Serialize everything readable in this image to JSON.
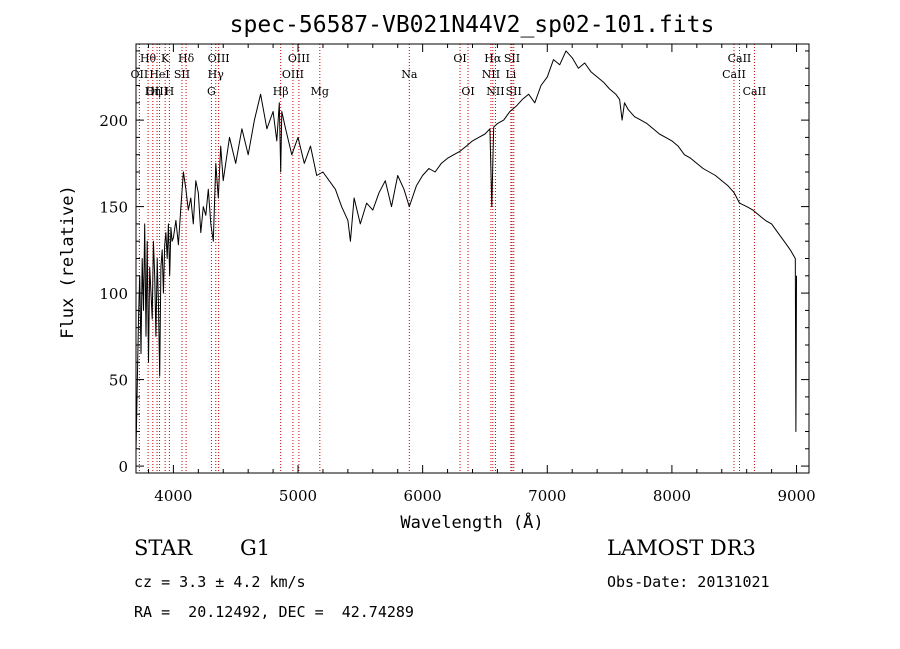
{
  "chart_data": {
    "type": "line",
    "title": "spec-56587-VB021N44V2_sp02-101.fits",
    "xlabel": "Wavelength (Å)",
    "ylabel": "Flux (relative)",
    "xlim": [
      3700,
      9100
    ],
    "ylim": [
      -4,
      244
    ],
    "x_ticks": [
      4000,
      5000,
      6000,
      7000,
      8000,
      9000
    ],
    "y_ticks": [
      0,
      50,
      100,
      150,
      200
    ],
    "grid": false,
    "series": [
      {
        "name": "flux",
        "x": [
          3700,
          3710,
          3720,
          3730,
          3740,
          3750,
          3760,
          3770,
          3780,
          3790,
          3800,
          3810,
          3820,
          3830,
          3840,
          3850,
          3860,
          3870,
          3880,
          3890,
          3900,
          3910,
          3920,
          3930,
          3940,
          3950,
          3960,
          3970,
          3980,
          3990,
          4000,
          4020,
          4040,
          4060,
          4080,
          4100,
          4120,
          4140,
          4160,
          4180,
          4200,
          4220,
          4240,
          4260,
          4280,
          4300,
          4320,
          4340,
          4360,
          4380,
          4400,
          4450,
          4500,
          4550,
          4600,
          4650,
          4700,
          4750,
          4800,
          4830,
          4850,
          4861,
          4870,
          4900,
          4950,
          5000,
          5050,
          5100,
          5150,
          5200,
          5250,
          5300,
          5350,
          5400,
          5420,
          5450,
          5500,
          5550,
          5600,
          5650,
          5700,
          5750,
          5800,
          5850,
          5893,
          5950,
          6000,
          6050,
          6100,
          6150,
          6200,
          6250,
          6300,
          6350,
          6400,
          6450,
          6500,
          6540,
          6555,
          6563,
          6570,
          6600,
          6650,
          6700,
          6750,
          6800,
          6850,
          6900,
          6950,
          7000,
          7050,
          7100,
          7150,
          7200,
          7250,
          7300,
          7350,
          7400,
          7450,
          7500,
          7550,
          7580,
          7600,
          7620,
          7650,
          7700,
          7750,
          7800,
          7850,
          7900,
          7950,
          8000,
          8050,
          8100,
          8150,
          8200,
          8250,
          8300,
          8350,
          8400,
          8450,
          8500,
          8542,
          8600,
          8650,
          8700,
          8750,
          8800,
          8850,
          8900,
          8950,
          8990,
          8995,
          9000
        ],
        "values": [
          8,
          45,
          85,
          110,
          65,
          120,
          90,
          140,
          75,
          130,
          60,
          115,
          100,
          85,
          130,
          110,
          75,
          120,
          95,
          52,
          115,
          125,
          100,
          128,
          135,
          120,
          140,
          110,
          138,
          130,
          132,
          142,
          128,
          150,
          170,
          160,
          148,
          155,
          140,
          165,
          158,
          135,
          150,
          145,
          160,
          140,
          130,
          175,
          155,
          185,
          165,
          190,
          175,
          195,
          180,
          200,
          215,
          195,
          205,
          188,
          210,
          170,
          205,
          195,
          180,
          190,
          175,
          185,
          168,
          170,
          165,
          160,
          150,
          142,
          130,
          155,
          140,
          152,
          148,
          158,
          165,
          150,
          168,
          160,
          150,
          162,
          168,
          172,
          170,
          175,
          178,
          180,
          182,
          185,
          188,
          190,
          192,
          195,
          150,
          175,
          196,
          198,
          200,
          205,
          208,
          212,
          215,
          210,
          220,
          225,
          235,
          232,
          240,
          236,
          230,
          233,
          228,
          225,
          222,
          218,
          215,
          212,
          200,
          210,
          206,
          202,
          200,
          198,
          195,
          192,
          190,
          188,
          185,
          180,
          178,
          175,
          172,
          170,
          168,
          165,
          162,
          158,
          152,
          150,
          148,
          145,
          142,
          140,
          135,
          130,
          125,
          120,
          20,
          110
        ]
      }
    ],
    "line_markers": [
      {
        "label": "Hθ",
        "wavelength": 3797,
        "row": 1
      },
      {
        "label": "OII",
        "wavelength": 3727,
        "row": 2
      },
      {
        "label": "OIII",
        "wavelength": 3869,
        "row": 3
      },
      {
        "label": "K",
        "wavelength": 3934,
        "row": 1
      },
      {
        "label": "HeI",
        "wavelength": 3889,
        "row": 2
      },
      {
        "label": "Hη",
        "wavelength": 3835,
        "row": 3
      },
      {
        "label": "SII",
        "wavelength": 4069,
        "row": 2
      },
      {
        "label": "H",
        "wavelength": 3968,
        "row": 3
      },
      {
        "label": "Hδ",
        "wavelength": 4102,
        "row": 1
      },
      {
        "label": "OIII",
        "wavelength": 4363,
        "row": 1
      },
      {
        "label": "Hγ",
        "wavelength": 4340,
        "row": 2
      },
      {
        "label": "G",
        "wavelength": 4305,
        "row": 3
      },
      {
        "label": "Hβ",
        "wavelength": 4861,
        "row": 3
      },
      {
        "label": "OIII",
        "wavelength": 5007,
        "row": 1
      },
      {
        "label": "OIII",
        "wavelength": 4959,
        "row": 2
      },
      {
        "label": "Mg",
        "wavelength": 5175,
        "row": 3
      },
      {
        "label": "Na",
        "wavelength": 5893,
        "row": 2
      },
      {
        "label": "OI",
        "wavelength": 6300,
        "row": 1
      },
      {
        "label": "OI",
        "wavelength": 6364,
        "row": 3
      },
      {
        "label": "Hα",
        "wavelength": 6563,
        "row": 1
      },
      {
        "label": "SII",
        "wavelength": 6717,
        "row": 1
      },
      {
        "label": "NII",
        "wavelength": 6548,
        "row": 2
      },
      {
        "label": "Li",
        "wavelength": 6708,
        "row": 2
      },
      {
        "label": "NII",
        "wavelength": 6584,
        "row": 3
      },
      {
        "label": "SII",
        "wavelength": 6731,
        "row": 3
      },
      {
        "label": "CaII",
        "wavelength": 8542,
        "row": 1
      },
      {
        "label": "CaII",
        "wavelength": 8498,
        "row": 2
      },
      {
        "label": "CaII",
        "wavelength": 8662,
        "row": 3
      }
    ],
    "line_color": "#000000",
    "marker_color": "#cc0000"
  },
  "info": {
    "object_class": "STAR",
    "subclass": "G1",
    "survey": "LAMOST DR3",
    "cz": "cz = 3.3 ± 4.2 km/s",
    "obs_date": "Obs-Date: 20131021",
    "radec": "RA =  20.12492, DEC =  42.74289"
  }
}
